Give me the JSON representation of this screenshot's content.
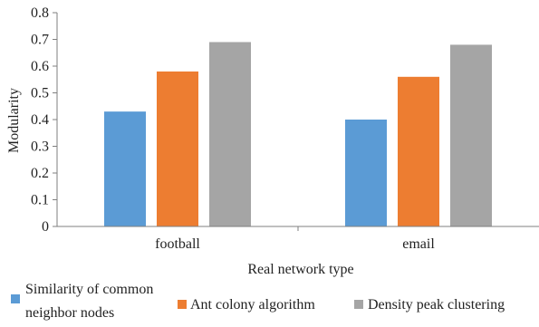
{
  "chart_data": {
    "type": "bar",
    "categories": [
      "football",
      "email"
    ],
    "series": [
      {
        "name": "Similarity of common neighbor nodes",
        "values": [
          0.43,
          0.4
        ],
        "color": "#5B9BD5"
      },
      {
        "name": "Ant colony algorithm",
        "values": [
          0.58,
          0.56
        ],
        "color": "#ED7D31"
      },
      {
        "name": "Density peak clustering",
        "values": [
          0.69,
          0.68
        ],
        "color": "#A5A5A5"
      }
    ],
    "xlabel": "Real network type",
    "ylabel": "Modularity",
    "ylim": [
      0,
      0.8
    ],
    "yticks": [
      "0",
      "0.1",
      "0.2",
      "0.3",
      "0.4",
      "0.5",
      "0.6",
      "0.7",
      "0.8"
    ],
    "grid": false,
    "legend_position": "bottom",
    "legend": {
      "item1_line1": "Similarity of common",
      "item1_line2": "neighbor nodes",
      "item2": "Ant colony algorithm",
      "item3": "Density peak clustering"
    }
  }
}
